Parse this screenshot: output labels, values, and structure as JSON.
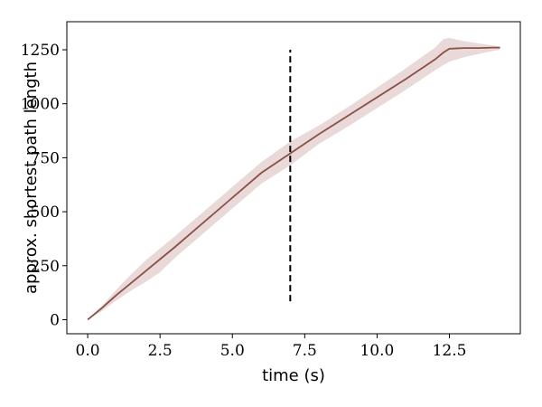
{
  "chart_data": {
    "type": "line",
    "title": "",
    "xlabel": "time (s)",
    "ylabel": "approx. shortest path length",
    "xlim": [
      -0.72,
      14.95
    ],
    "ylim": [
      -65,
      1380
    ],
    "xticks": [
      0.0,
      2.5,
      5.0,
      7.5,
      10.0,
      12.5
    ],
    "xtick_labels": [
      "0.0",
      "2.5",
      "5.0",
      "7.5",
      "10.0",
      "12.5"
    ],
    "yticks": [
      0,
      250,
      500,
      750,
      1000,
      1250
    ],
    "ytick_labels": [
      "0",
      "250",
      "500",
      "750",
      "1000",
      "1250"
    ],
    "grid": false,
    "legend": "none",
    "series": [
      {
        "color": "#8b5048",
        "band_color": "#c9a19d",
        "x": [
          0.0,
          0.5,
          1.0,
          1.5,
          2.0,
          2.5,
          3.0,
          4.0,
          5.0,
          6.0,
          7.0,
          8.0,
          9.0,
          10.0,
          11.0,
          12.0,
          12.3,
          12.5,
          13.0,
          13.5,
          14.0,
          14.25
        ],
        "y": [
          0,
          55,
          115,
          170,
          225,
          280,
          335,
          450,
          565,
          680,
          770,
          860,
          945,
          1030,
          1115,
          1205,
          1238,
          1255,
          1258,
          1258,
          1260,
          1260
        ],
        "lower": [
          0,
          40,
          90,
          135,
          175,
          220,
          285,
          400,
          515,
          630,
          715,
          815,
          895,
          980,
          1065,
          1155,
          1180,
          1195,
          1215,
          1230,
          1245,
          1250
        ],
        "upper": [
          0,
          65,
          140,
          210,
          275,
          330,
          385,
          500,
          615,
          730,
          825,
          900,
          985,
          1075,
          1165,
          1260,
          1300,
          1305,
          1290,
          1280,
          1270,
          1265
        ]
      }
    ],
    "annotations": [
      {
        "type": "vline",
        "x": 7.0,
        "ymin": 85,
        "ymax": 1250,
        "style": "dashed",
        "color": "#000000"
      }
    ]
  }
}
